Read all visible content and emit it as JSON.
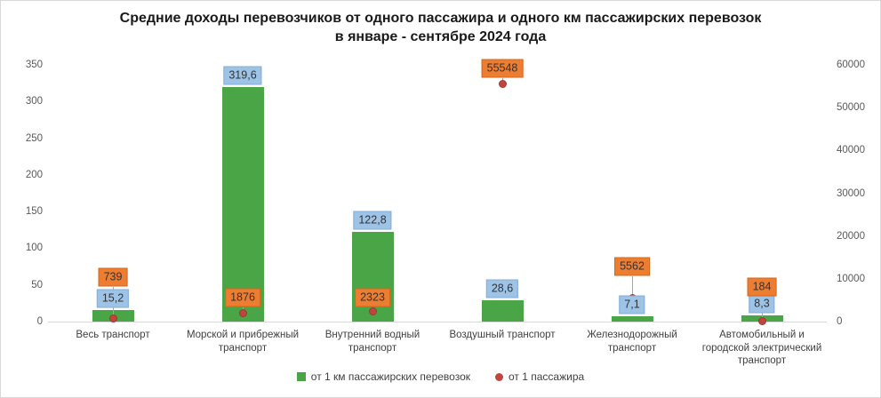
{
  "title": {
    "line1": "Средние доходы перевозчиков от одного пассажира и одного км пассажирских перевозок",
    "line2": "в январе - сентябре 2024 года"
  },
  "chart_data": {
    "type": "bar",
    "title": "Средние доходы перевозчиков от одного пассажира и одного км пассажирских перевозок в январе - сентябре 2024 года",
    "categories": [
      "Весь транспорт",
      "Морской и прибрежный транспорт",
      "Внутренний водный транспорт",
      "Воздушный транспорт",
      "Железнодорожный транспорт",
      "Автомобильный и городской электрический транспорт"
    ],
    "series": [
      {
        "name": "от 1 км пассажирских перевозок",
        "type": "bar",
        "axis": "left",
        "values": [
          15.2,
          319.6,
          122.8,
          28.6,
          7.1,
          8.3
        ],
        "labels": [
          "15,2",
          "319,6",
          "122,8",
          "28,6",
          "7,1",
          "8,3"
        ]
      },
      {
        "name": "от 1 пассажира",
        "type": "scatter",
        "axis": "right",
        "values": [
          739,
          1876,
          2323,
          55548,
          5562,
          184
        ],
        "labels": [
          "739",
          "1876",
          "2323",
          "55548",
          "5562",
          "184"
        ]
      }
    ],
    "left_axis": {
      "min": 0,
      "max": 350,
      "step": 50,
      "ticks": [
        "0",
        "50",
        "100",
        "150",
        "200",
        "250",
        "300",
        "350"
      ]
    },
    "right_axis": {
      "min": 0,
      "max": 60000,
      "step": 10000,
      "ticks": [
        "0",
        "10000",
        "20000",
        "30000",
        "40000",
        "50000",
        "60000"
      ]
    },
    "grid": false,
    "legend_position": "bottom"
  },
  "colors": {
    "bar_fill": "#4aa546",
    "bar_label_fill": "#9dc3e6",
    "bar_label_border": "#84aed6",
    "point_fill": "#c0453f",
    "point_border": "#a03730",
    "point_label_fill": "#ed7d31",
    "point_label_border": "#d3661c",
    "leader_line": "#a6a6a6",
    "axis_line": "#d9d9d9",
    "tick_text": "#595959",
    "category_text": "#404040",
    "label_text": "#333333",
    "title_text": "#1a1a1a",
    "legend_text": "#404040"
  }
}
